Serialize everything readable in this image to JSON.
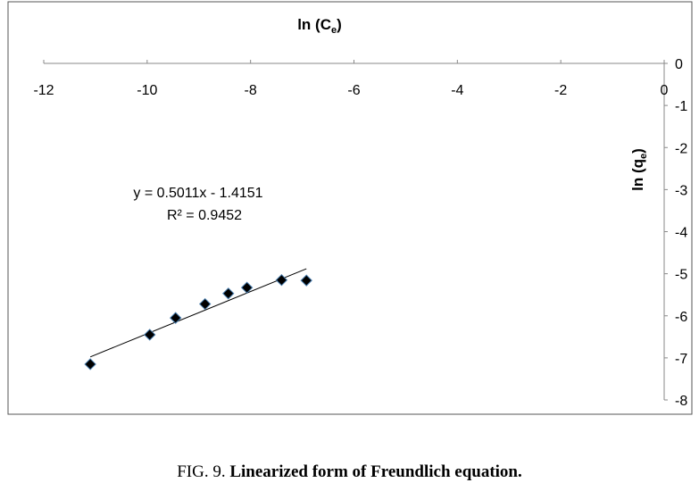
{
  "chart_data": {
    "type": "scatter",
    "title": "",
    "xlabel": {
      "main": "ln (C",
      "sub": "e",
      "close": ")"
    },
    "ylabel": {
      "main": "ln (q",
      "sub": "e",
      "close": ")"
    },
    "xlim": [
      -12,
      0
    ],
    "ylim": [
      -8,
      0
    ],
    "xticks": [
      "-12",
      "-10",
      "-8",
      "-6",
      "-4",
      "-2",
      "0"
    ],
    "yticks": [
      "0",
      "-1",
      "-2",
      "-3",
      "-4",
      "-5",
      "-6",
      "-7",
      "-8"
    ],
    "grid": false,
    "series": [
      {
        "x": [
          -11.1,
          -9.95,
          -9.45,
          -8.88,
          -8.43,
          -8.07,
          -7.4,
          -6.92
        ],
        "y": [
          -7.15,
          -6.45,
          -6.05,
          -5.72,
          -5.47,
          -5.33,
          -5.15,
          -5.16
        ],
        "marker": "diamond",
        "color": "#000000"
      }
    ],
    "trendline": {
      "slope": 0.5011,
      "intercept": -1.4151,
      "x_range": [
        -11.1,
        -6.92
      ],
      "equation_label": "y = 0.5011x - 1.4151",
      "r2_label": "R² = 0.9452"
    }
  },
  "caption": {
    "prefix": "FIG. 9. ",
    "bold": "Linearized form of Freundlich equation."
  }
}
